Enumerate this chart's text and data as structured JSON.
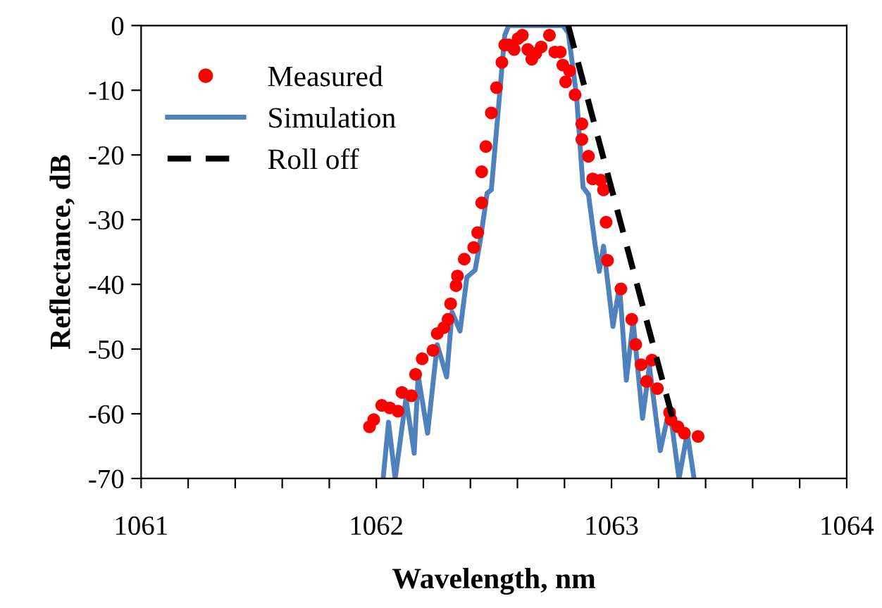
{
  "chart_data": {
    "type": "scatter",
    "xlabel": "Wavelength, nm",
    "ylabel": "Reflectance, dB",
    "xlim": [
      1061,
      1064
    ],
    "ylim": [
      -70,
      0
    ],
    "xticks": [
      1061,
      {
        "value": 1061.2,
        "label": null
      },
      {
        "value": 1061.4,
        "label": null
      },
      {
        "value": 1061.6,
        "label": null
      },
      {
        "value": 1061.8,
        "label": null
      },
      1062,
      {
        "value": 1062.2,
        "label": null
      },
      {
        "value": 1062.4,
        "label": null
      },
      {
        "value": 1062.6,
        "label": null
      },
      {
        "value": 1062.8,
        "label": null
      },
      1063,
      {
        "value": 1063.2,
        "label": null
      },
      {
        "value": 1063.4,
        "label": null
      },
      {
        "value": 1063.6,
        "label": null
      },
      {
        "value": 1063.8,
        "label": null
      },
      1064
    ],
    "yticks": [
      {
        "value": -70,
        "label": "-70"
      },
      {
        "value": -60,
        "label": "-60"
      },
      {
        "value": -50,
        "label": "-50"
      },
      {
        "value": -40,
        "label": "-40"
      },
      {
        "value": -30,
        "label": "-30"
      },
      {
        "value": -20,
        "label": "-20"
      },
      {
        "value": -10,
        "label": "-10"
      },
      0
    ],
    "grid": false,
    "legend": "top left",
    "series": [
      {
        "name": "Measured",
        "marker": "circle",
        "color": "#ff0000",
        "x": [
          1061.971,
          1061.989,
          1062.023,
          1062.057,
          1062.092,
          1062.109,
          1062.149,
          1062.167,
          1062.195,
          1062.241,
          1062.259,
          1062.287,
          1062.305,
          1062.316,
          1062.339,
          1062.345,
          1062.374,
          1062.414,
          1062.431,
          1062.448,
          1062.448,
          1062.466,
          1062.489,
          1062.511,
          1062.534,
          1062.546,
          1062.563,
          1062.586,
          1062.603,
          1062.621,
          1062.644,
          1062.661,
          1062.678,
          1062.701,
          1062.736,
          1062.759,
          1062.782,
          1062.793,
          1062.805,
          1062.822,
          1062.845,
          1062.874,
          1062.874,
          1062.902,
          1062.92,
          1062.954,
          1062.966,
          1062.977,
          1062.983,
          1063.04,
          1063.086,
          1063.103,
          1063.126,
          1063.149,
          1063.172,
          1063.195,
          1063.247,
          1063.253,
          1063.282,
          1063.31,
          1063.368
        ],
        "values": [
          -62.0,
          -60.9,
          -58.7,
          -59.1,
          -59.6,
          -56.7,
          -57.2,
          -53.9,
          -51.5,
          -50.2,
          -47.6,
          -46.7,
          -45.4,
          -43.0,
          -40.2,
          -38.7,
          -36.1,
          -34.3,
          -32.0,
          -27.4,
          -22.6,
          -18.7,
          -13.5,
          -9.6,
          -5.7,
          -3.0,
          -3.0,
          -3.7,
          -2.0,
          -1.5,
          -3.7,
          -5.2,
          -4.3,
          -3.3,
          -1.5,
          -4.1,
          -4.1,
          -6.1,
          -8.7,
          -7.0,
          -10.7,
          -15.2,
          -17.6,
          -20.2,
          -23.7,
          -23.9,
          -25.4,
          -30.4,
          -36.3,
          -40.7,
          -45.4,
          -49.3,
          -52.4,
          -55.0,
          -51.7,
          -56.1,
          -59.8,
          -60.9,
          -62.0,
          -63.0,
          -63.5
        ]
      },
      {
        "name": "Simulation",
        "type": "line",
        "line_style": "solid",
        "marker": "none",
        "color": "#4f81bd",
        "x": [
          1062.029,
          1062.052,
          1062.08,
          1062.126,
          1062.161,
          1062.178,
          1062.218,
          1062.259,
          1062.299,
          1062.322,
          1062.356,
          1062.385,
          1062.42,
          1062.443,
          1062.471,
          1062.489,
          1062.546,
          1062.563,
          1062.793,
          1062.816,
          1062.851,
          1062.879,
          1062.902,
          1062.931,
          1062.948,
          1062.966,
          1063.006,
          1063.034,
          1063.063,
          1063.092,
          1063.132,
          1063.161,
          1063.207,
          1063.247,
          1063.287,
          1063.322,
          1063.351
        ],
        "values": [
          -70,
          -61.3,
          -70,
          -57.6,
          -66.1,
          -54.1,
          -63.0,
          -49.3,
          -54.3,
          -44.3,
          -47.2,
          -38.9,
          -37.8,
          -33.0,
          -25.9,
          -25.4,
          -1.5,
          0,
          0,
          -1.1,
          -10.7,
          -25.0,
          -26.1,
          -34.1,
          -38.0,
          -34.1,
          -46.5,
          -40.2,
          -54.8,
          -45.7,
          -60.7,
          -52.6,
          -65.7,
          -59.1,
          -70,
          -63.0,
          -70
        ]
      },
      {
        "name": "Roll off",
        "type": "line",
        "line_style": "dashed",
        "marker": "none",
        "color": "#000000",
        "x": [
          1062.816,
          1063.264
        ],
        "values": [
          0,
          -61.3
        ]
      }
    ]
  }
}
